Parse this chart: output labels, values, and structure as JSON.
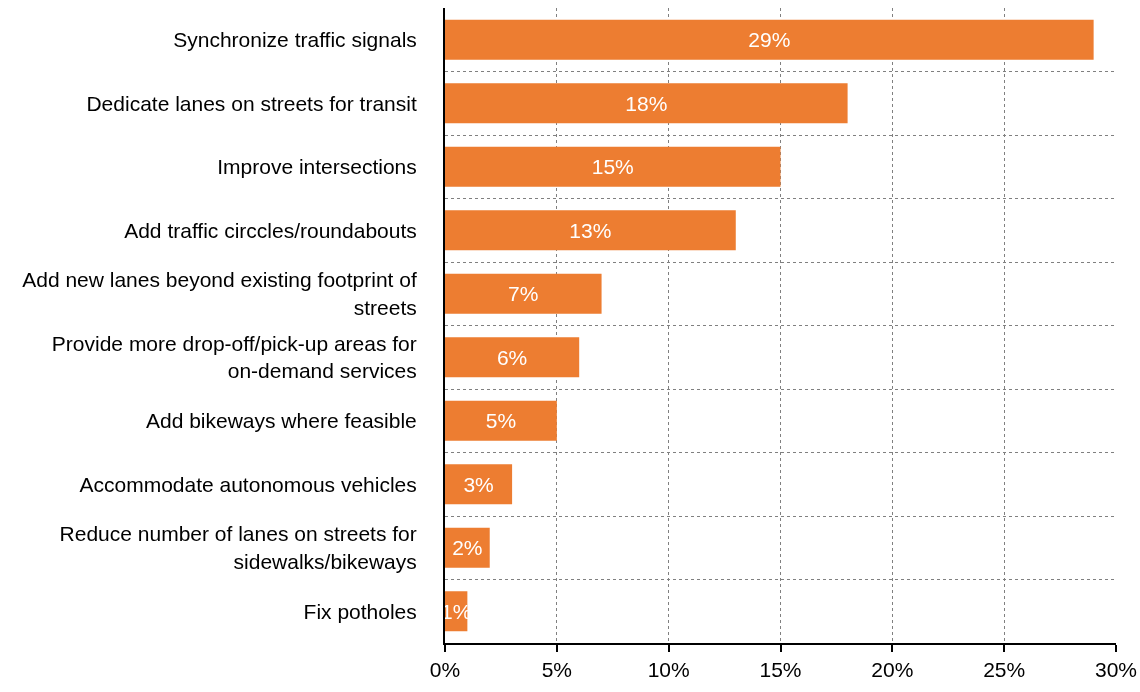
{
  "chart_data": {
    "type": "bar",
    "orientation": "horizontal",
    "categories": [
      "Synchronize traffic signals",
      "Dedicate lanes on streets for transit",
      "Improve intersections",
      "Add traffic circcles/roundabouts",
      "Add new lanes beyond existing footprint of streets",
      "Provide more drop-off/pick-up areas for on-demand services",
      "Add bikeways where feasible",
      "Accommodate autonomous vehicles",
      "Reduce number of lanes on streets for sidewalks/bikeways",
      "Fix potholes"
    ],
    "values": [
      29,
      18,
      15,
      13,
      7,
      6,
      5,
      3,
      2,
      1
    ],
    "value_labels": [
      "29%",
      "18%",
      "15%",
      "13%",
      "7%",
      "6%",
      "5%",
      "3%",
      "2%",
      "1%"
    ],
    "color": "#ed7d31",
    "xlim": [
      0,
      30
    ],
    "xticks": [
      {
        "value": 0,
        "label": "0%"
      },
      {
        "value": 5,
        "label": "5%"
      },
      {
        "value": 10,
        "label": "10%"
      },
      {
        "value": 15,
        "label": "15%"
      },
      {
        "value": 20,
        "label": "20%"
      },
      {
        "value": 25,
        "label": "25%"
      },
      {
        "value": 30,
        "label": "30%"
      }
    ],
    "grid": true
  }
}
